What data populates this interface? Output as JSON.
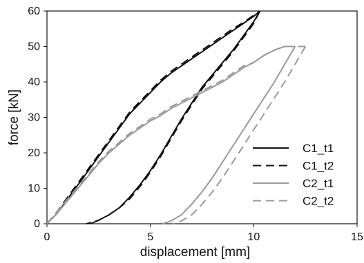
{
  "chart_data": {
    "type": "line",
    "title": "",
    "xlabel": "displacement [mm]",
    "ylabel": "force [kN]",
    "xlim": [
      0,
      15
    ],
    "ylim": [
      0,
      60
    ],
    "xticks": [
      "0",
      "5",
      "10",
      "15"
    ],
    "yticks": [
      "0",
      "10",
      "20",
      "30",
      "40",
      "50",
      "60"
    ],
    "grid": false,
    "legend_position": "lower-right",
    "series": [
      {
        "name": "C1_t1",
        "color": "#111111",
        "dash": "solid",
        "loading": [
          [
            0,
            0
          ],
          [
            0.5,
            3
          ],
          [
            1,
            7
          ],
          [
            1.5,
            11
          ],
          [
            2,
            15
          ],
          [
            2.5,
            19
          ],
          [
            3,
            23
          ],
          [
            3.5,
            27
          ],
          [
            4,
            31
          ],
          [
            4.5,
            34
          ],
          [
            5,
            37
          ],
          [
            5.5,
            40
          ],
          [
            6,
            42.5
          ],
          [
            6.5,
            44.5
          ],
          [
            7,
            46.5
          ],
          [
            7.5,
            48.5
          ],
          [
            8,
            50.5
          ],
          [
            8.5,
            52.5
          ],
          [
            9,
            54.5
          ],
          [
            9.5,
            56.5
          ],
          [
            10,
            58.5
          ],
          [
            10.3,
            60
          ]
        ],
        "unloading": [
          [
            10.3,
            60
          ],
          [
            10,
            57
          ],
          [
            9.5,
            53
          ],
          [
            9,
            49
          ],
          [
            8.5,
            45.5
          ],
          [
            8,
            42
          ],
          [
            7.5,
            38.5
          ],
          [
            7,
            34
          ],
          [
            6.5,
            29.5
          ],
          [
            6,
            24.5
          ],
          [
            5.5,
            19.5
          ],
          [
            5,
            15
          ],
          [
            4.5,
            11
          ],
          [
            4,
            7.5
          ],
          [
            3.5,
            4.5
          ],
          [
            3,
            2.5
          ],
          [
            2.5,
            1
          ],
          [
            2.1,
            0
          ]
        ]
      },
      {
        "name": "C1_t2",
        "color": "#111111",
        "dash": "dashed",
        "loading": [
          [
            0,
            0
          ],
          [
            0.5,
            3.5
          ],
          [
            1,
            7.5
          ],
          [
            1.5,
            11.5
          ],
          [
            2,
            15.5
          ],
          [
            2.5,
            19.5
          ],
          [
            3,
            23.5
          ],
          [
            3.5,
            27.5
          ],
          [
            4,
            31.5
          ],
          [
            4.5,
            34.5
          ],
          [
            5,
            37.5
          ],
          [
            5.5,
            40.5
          ],
          [
            6,
            43
          ],
          [
            6.5,
            45
          ],
          [
            7,
            47
          ],
          [
            7.5,
            49
          ],
          [
            8,
            51
          ],
          [
            8.5,
            53
          ],
          [
            9,
            55
          ],
          [
            9.5,
            56.8
          ],
          [
            10,
            58.8
          ],
          [
            10.3,
            60
          ]
        ],
        "unloading": [
          [
            10.3,
            60
          ],
          [
            10,
            56.5
          ],
          [
            9.5,
            52.5
          ],
          [
            9,
            48.5
          ],
          [
            8.5,
            45
          ],
          [
            8,
            41.5
          ],
          [
            7.5,
            38
          ],
          [
            7,
            33.5
          ],
          [
            6.5,
            29
          ],
          [
            6,
            24
          ],
          [
            5.5,
            19
          ],
          [
            5,
            14.5
          ],
          [
            4.5,
            10.5
          ],
          [
            4,
            7
          ],
          [
            3.5,
            4.5
          ],
          [
            3,
            2.5
          ],
          [
            2.5,
            1
          ],
          [
            1.9,
            0
          ]
        ]
      },
      {
        "name": "C2_t1",
        "color": "#999999",
        "dash": "solid",
        "loading": [
          [
            0,
            0
          ],
          [
            0.5,
            3
          ],
          [
            1,
            6.5
          ],
          [
            1.5,
            10
          ],
          [
            2,
            13.5
          ],
          [
            2.5,
            17
          ],
          [
            3,
            20
          ],
          [
            3.5,
            22.5
          ],
          [
            4,
            25
          ],
          [
            4.5,
            27
          ],
          [
            5,
            29
          ],
          [
            5.5,
            30.5
          ],
          [
            6,
            32.5
          ],
          [
            6.5,
            34
          ],
          [
            7,
            35.5
          ],
          [
            7.5,
            37
          ],
          [
            8,
            38.5
          ],
          [
            8.5,
            40
          ],
          [
            9,
            42
          ],
          [
            9.5,
            44
          ],
          [
            10,
            45.5
          ],
          [
            10.5,
            47.5
          ],
          [
            11,
            49
          ],
          [
            11.5,
            50
          ],
          [
            12,
            50
          ]
        ],
        "unloading": [
          [
            12,
            50
          ],
          [
            11.5,
            45
          ],
          [
            11,
            40
          ],
          [
            10.5,
            35.5
          ],
          [
            10,
            31
          ],
          [
            9.5,
            26.5
          ],
          [
            9,
            22
          ],
          [
            8.5,
            17.5
          ],
          [
            8,
            13
          ],
          [
            7.5,
            9
          ],
          [
            7,
            5.5
          ],
          [
            6.5,
            2.5
          ],
          [
            6,
            0.8
          ],
          [
            5.6,
            0
          ]
        ]
      },
      {
        "name": "C2_t2",
        "color": "#999999",
        "dash": "dashed",
        "loading": [
          [
            0,
            0
          ],
          [
            0.5,
            3.5
          ],
          [
            1,
            7
          ],
          [
            1.5,
            10.5
          ],
          [
            2,
            14
          ],
          [
            2.5,
            17.5
          ],
          [
            3,
            20.5
          ],
          [
            3.5,
            23
          ],
          [
            4,
            25.5
          ],
          [
            4.5,
            27.5
          ],
          [
            5,
            29.5
          ],
          [
            5.5,
            31
          ],
          [
            6,
            33
          ],
          [
            6.5,
            34.5
          ],
          [
            7,
            36
          ],
          [
            7.5,
            37.5
          ],
          [
            8,
            39
          ],
          [
            8.5,
            40.5
          ],
          [
            9,
            42.5
          ],
          [
            9.5,
            44.5
          ],
          [
            10,
            45.5
          ],
          [
            10.5,
            47.5
          ],
          [
            11,
            49
          ],
          [
            11.5,
            50
          ],
          [
            12.5,
            50
          ]
        ],
        "unloading": [
          [
            12.5,
            50
          ],
          [
            12,
            45
          ],
          [
            11.5,
            40
          ],
          [
            11,
            35.5
          ],
          [
            10.5,
            31
          ],
          [
            10,
            26.5
          ],
          [
            9.5,
            22
          ],
          [
            9,
            17.5
          ],
          [
            8.5,
            13
          ],
          [
            8,
            9
          ],
          [
            7.5,
            5.5
          ],
          [
            7,
            2.5
          ],
          [
            6.5,
            0.8
          ],
          [
            6.1,
            0
          ]
        ]
      }
    ]
  }
}
